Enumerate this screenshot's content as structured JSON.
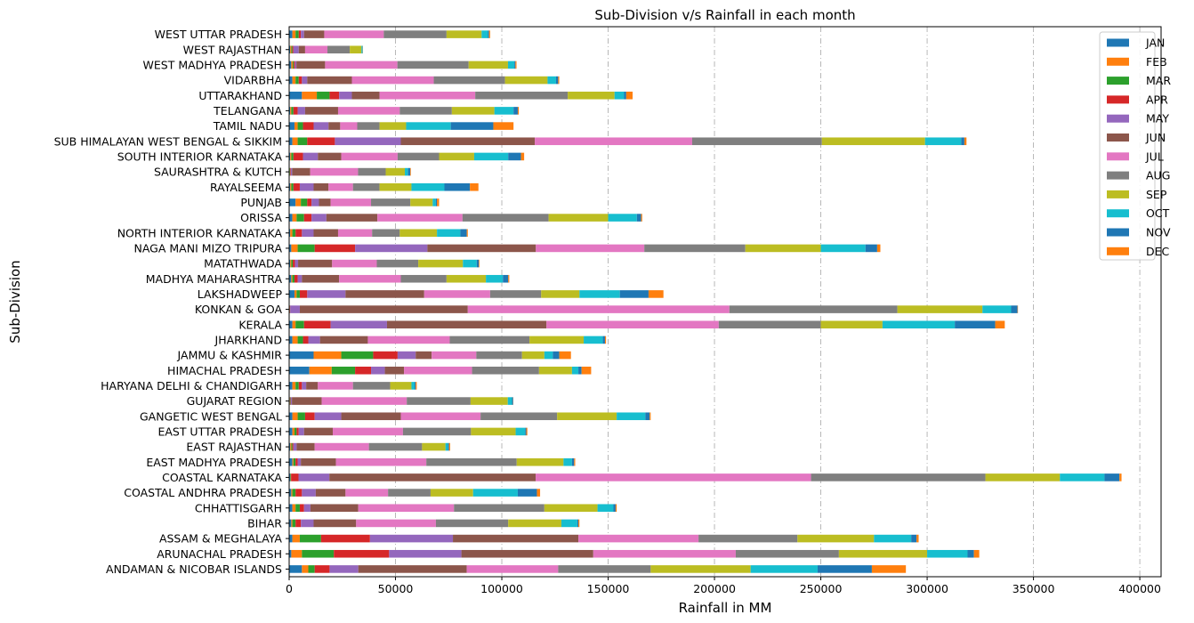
{
  "chart_data": {
    "type": "bar",
    "orientation": "horizontal",
    "stacked": true,
    "title": "Sub-Division v/s Rainfall in each month",
    "xlabel": "Rainfall in MM",
    "ylabel": "Sub-Division",
    "xlim": [
      0,
      410000
    ],
    "xticks": [
      0,
      50000,
      100000,
      150000,
      200000,
      250000,
      300000,
      350000,
      400000
    ],
    "xtick_labels": [
      "0",
      "50000",
      "100000",
      "150000",
      "200000",
      "250000",
      "300000",
      "350000",
      "400000"
    ],
    "grid": "x dashed",
    "legend_position": "top-right",
    "categories": [
      "ANDAMAN & NICOBAR ISLANDS",
      "ARUNACHAL PRADESH",
      "ASSAM & MEGHALAYA",
      "BIHAR",
      "CHHATTISGARH",
      "COASTAL ANDHRA PRADESH",
      "COASTAL KARNATAKA",
      "EAST MADHYA PRADESH",
      "EAST RAJASTHAN",
      "EAST UTTAR PRADESH",
      "GANGETIC WEST BENGAL",
      "GUJARAT REGION",
      "HARYANA DELHI & CHANDIGARH",
      "HIMACHAL PRADESH",
      "JAMMU & KASHMIR",
      "JHARKHAND",
      "KERALA",
      "KONKAN & GOA",
      "LAKSHADWEEP",
      "MADHYA MAHARASHTRA",
      "MATATHWADA",
      "NAGA MANI MIZO TRIPURA",
      "NORTH INTERIOR KARNATAKA",
      "ORISSA",
      "PUNJAB",
      "RAYALSEEMA",
      "SAURASHTRA & KUTCH",
      "SOUTH INTERIOR KARNATAKA",
      "SUB HIMALAYAN WEST BENGAL & SIKKIM",
      "TAMIL NADU",
      "TELANGANA",
      "UTTARAKHAND",
      "VIDARBHA",
      "WEST MADHYA PRADESH",
      "WEST RAJASTHAN",
      "WEST UTTAR PRADESH"
    ],
    "series": [
      {
        "name": "JAN",
        "color": "#1f77b4",
        "values": [
          6000,
          1000,
          1500,
          1000,
          1500,
          1000,
          500,
          1500,
          500,
          1500,
          1500,
          300,
          1500,
          9500,
          11500,
          1500,
          1500,
          100,
          2500,
          1000,
          500,
          1000,
          500,
          1500,
          3000,
          500,
          200,
          500,
          1500,
          2500,
          500,
          6000,
          1500,
          1000,
          500,
          1500
        ]
      },
      {
        "name": "FEB",
        "color": "#ff7f0e",
        "values": [
          3000,
          5000,
          3500,
          500,
          1500,
          500,
          100,
          500,
          500,
          1000,
          2500,
          100,
          1500,
          10500,
          13000,
          2500,
          1500,
          100,
          1000,
          500,
          500,
          3000,
          1000,
          2000,
          2500,
          500,
          100,
          500,
          2500,
          1500,
          500,
          7000,
          1500,
          700,
          500,
          1500
        ]
      },
      {
        "name": "MAR",
        "color": "#2ca02c",
        "values": [
          3000,
          15000,
          10000,
          1500,
          2000,
          1500,
          300,
          1000,
          500,
          1000,
          3500,
          200,
          1500,
          11000,
          15000,
          2500,
          4000,
          100,
          1500,
          1000,
          700,
          8000,
          1500,
          3500,
          3000,
          1000,
          200,
          1000,
          4500,
          2500,
          1000,
          6000,
          1500,
          500,
          500,
          1500
        ]
      },
      {
        "name": "APR",
        "color": "#d62728",
        "values": [
          7000,
          26000,
          23000,
          2500,
          2000,
          3000,
          3500,
          1000,
          500,
          1000,
          4500,
          200,
          1500,
          7500,
          11500,
          2500,
          12500,
          200,
          3500,
          1500,
          1000,
          19000,
          3000,
          3500,
          2000,
          3000,
          300,
          4500,
          13000,
          5000,
          2000,
          4500,
          1500,
          500,
          500,
          1000
        ]
      },
      {
        "name": "MAY",
        "color": "#9467bd",
        "values": [
          13500,
          34000,
          39000,
          6000,
          3000,
          6500,
          14500,
          1500,
          1500,
          2500,
          12500,
          500,
          2000,
          6500,
          8500,
          5500,
          26500,
          4500,
          18000,
          2000,
          1500,
          34000,
          5500,
          7000,
          3500,
          6500,
          600,
          7000,
          31000,
          7000,
          3500,
          6000,
          2500,
          700,
          2500,
          1500
        ]
      },
      {
        "name": "JUN",
        "color": "#8c564b",
        "values": [
          51000,
          62000,
          59000,
          20000,
          22500,
          14000,
          97000,
          16500,
          8500,
          13500,
          28000,
          14000,
          5500,
          9000,
          7500,
          22500,
          75000,
          79000,
          37000,
          17500,
          16000,
          51000,
          11500,
          24000,
          5500,
          7000,
          8500,
          11000,
          63000,
          5500,
          15500,
          13000,
          21000,
          13500,
          3000,
          9500
        ]
      },
      {
        "name": "JUL",
        "color": "#e377c2",
        "values": [
          43000,
          67000,
          56500,
          37500,
          45000,
          20000,
          129500,
          42500,
          25500,
          33000,
          37500,
          40000,
          16500,
          32000,
          21000,
          38500,
          81000,
          123000,
          31000,
          29000,
          21000,
          51000,
          16000,
          40000,
          19000,
          11500,
          22500,
          26500,
          74000,
          8000,
          29000,
          45000,
          38500,
          34000,
          10500,
          28000
        ]
      },
      {
        "name": "AUG",
        "color": "#7f7f7f",
        "values": [
          43500,
          48500,
          46500,
          34000,
          42500,
          20000,
          82000,
          42500,
          25000,
          32000,
          36000,
          30000,
          17500,
          31500,
          21500,
          37500,
          48000,
          79000,
          24000,
          21500,
          19500,
          47500,
          13000,
          40500,
          18500,
          12500,
          13000,
          19500,
          61000,
          10500,
          24500,
          43500,
          33500,
          33500,
          10500,
          29500
        ]
      },
      {
        "name": "SEP",
        "color": "#bcbd22",
        "values": [
          47000,
          41500,
          36000,
          25000,
          25000,
          20000,
          35000,
          22000,
          11000,
          21000,
          28000,
          17500,
          10000,
          15500,
          10500,
          25500,
          29000,
          40000,
          18000,
          18500,
          21000,
          35500,
          17500,
          28000,
          10500,
          15000,
          9000,
          16500,
          48500,
          12500,
          20000,
          22000,
          20000,
          18500,
          5500,
          16500
        ]
      },
      {
        "name": "OCT",
        "color": "#17becf",
        "values": [
          31500,
          19000,
          17500,
          7500,
          7500,
          21000,
          21000,
          4000,
          1200,
          4500,
          13500,
          2000,
          1500,
          3000,
          4000,
          9000,
          34000,
          13500,
          19000,
          8000,
          6500,
          21000,
          11000,
          13500,
          1500,
          15500,
          1500,
          16000,
          17000,
          21000,
          9000,
          4500,
          4000,
          3000,
          500,
          3000
        ]
      },
      {
        "name": "NOV",
        "color": "#1f77b4",
        "values": [
          25500,
          3000,
          2500,
          500,
          1000,
          9000,
          7000,
          1000,
          500,
          500,
          2000,
          500,
          500,
          1500,
          3000,
          1000,
          19000,
          3000,
          13500,
          2500,
          1000,
          5500,
          3000,
          2000,
          500,
          12000,
          1000,
          6000,
          1500,
          20000,
          2000,
          1000,
          1000,
          500,
          100,
          500
        ]
      },
      {
        "name": "DEC",
        "color": "#ff7f0e",
        "values": [
          16000,
          2500,
          1000,
          500,
          500,
          1500,
          1000,
          500,
          500,
          500,
          500,
          100,
          500,
          4500,
          5500,
          500,
          4500,
          200,
          7000,
          500,
          300,
          1500,
          500,
          500,
          1000,
          4000,
          300,
          1500,
          1000,
          9500,
          500,
          3000,
          500,
          500,
          100,
          500
        ]
      }
    ]
  }
}
